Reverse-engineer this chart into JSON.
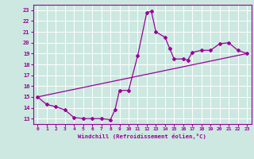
{
  "xlabel": "Windchill (Refroidissement éolien,°C)",
  "xlim": [
    -0.5,
    23.5
  ],
  "ylim": [
    12.5,
    23.5
  ],
  "xticks": [
    0,
    1,
    2,
    3,
    4,
    5,
    6,
    7,
    8,
    9,
    10,
    11,
    12,
    13,
    14,
    15,
    16,
    17,
    18,
    19,
    20,
    21,
    22,
    23
  ],
  "yticks": [
    13,
    14,
    15,
    16,
    17,
    18,
    19,
    20,
    21,
    22,
    23
  ],
  "line_color": "#990099",
  "bg_color": "#cce8e0",
  "grid_color": "#ffffff",
  "points": [
    [
      0,
      15.0
    ],
    [
      1,
      14.3
    ],
    [
      2,
      14.1
    ],
    [
      3,
      13.8
    ],
    [
      4,
      13.1
    ],
    [
      5,
      13.0
    ],
    [
      6,
      13.0
    ],
    [
      7,
      13.0
    ],
    [
      8,
      12.9
    ],
    [
      8.5,
      13.8
    ],
    [
      9,
      15.6
    ],
    [
      10,
      15.6
    ],
    [
      11,
      18.8
    ],
    [
      12,
      22.8
    ],
    [
      12.5,
      22.9
    ],
    [
      13,
      21.0
    ],
    [
      14,
      20.5
    ],
    [
      14.5,
      19.5
    ],
    [
      15,
      18.5
    ],
    [
      16,
      18.5
    ],
    [
      16.5,
      18.4
    ],
    [
      17,
      19.1
    ],
    [
      18,
      19.3
    ],
    [
      19,
      19.3
    ],
    [
      20,
      19.9
    ],
    [
      21,
      20.0
    ],
    [
      22,
      19.3
    ],
    [
      23,
      19.0
    ]
  ],
  "points2": [
    [
      0,
      15.0
    ],
    [
      23,
      19.0
    ]
  ]
}
